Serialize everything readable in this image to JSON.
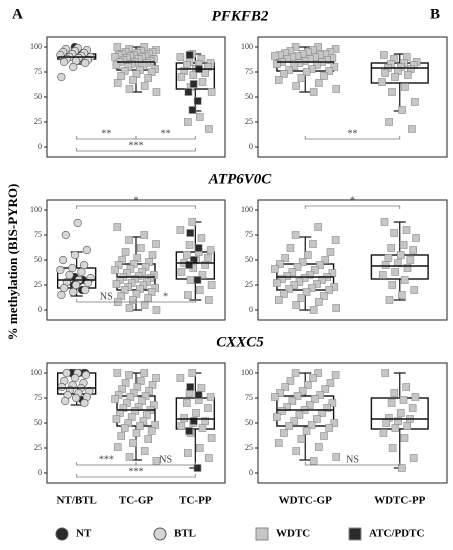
{
  "ylabel": "% methylation (BIS-PYRO)",
  "panel_labels": [
    "A",
    "B"
  ],
  "legend": [
    {
      "name": "NT",
      "color": "#2b2b2b",
      "marker": "circle"
    },
    {
      "name": "BTL",
      "color": "#d6d6d6",
      "marker": "circle"
    },
    {
      "name": "WDTC",
      "color": "#c6c6c6",
      "marker": "square"
    },
    {
      "name": "ATC/PDTC",
      "color": "#2b2b2b",
      "marker": "square"
    }
  ],
  "chart_data": [
    {
      "type": "box",
      "title": "PFKFB2",
      "categories": [
        null,
        null,
        null
      ],
      "ylim": [
        -10,
        110
      ],
      "yticks": [
        0,
        25,
        50,
        75,
        100
      ],
      "groups": [
        {
          "box": {
            "min": 83,
            "q1": 88,
            "median": 90,
            "q3": 93,
            "max": 97
          },
          "points": {
            "NT": [
              100,
              93,
              92,
              90,
              88
            ],
            "BTL": [
              99,
              98,
              97,
              96,
              95,
              94,
              93,
              92,
              91,
              90,
              90,
              89,
              88,
              87,
              86,
              85,
              84,
              80,
              70
            ]
          }
        },
        {
          "box": {
            "min": 55,
            "q1": 77,
            "median": 85,
            "q3": 91,
            "max": 100
          },
          "points": {
            "WDTC": [
              100,
              100,
              98,
              97,
              96,
              95,
              95,
              94,
              93,
              93,
              92,
              92,
              91,
              91,
              90,
              90,
              89,
              88,
              88,
              87,
              86,
              85,
              85,
              84,
              83,
              82,
              81,
              80,
              78,
              77,
              76,
              75,
              73,
              71,
              69,
              67,
              64,
              61,
              58,
              55
            ]
          }
        },
        {
          "box": {
            "min": 36,
            "q1": 58,
            "median": 78,
            "q3": 84,
            "max": 93
          },
          "points": {
            "WDTC": [
              93,
              90,
              88,
              85,
              84,
              83,
              82,
              80,
              78,
              76,
              74,
              72,
              70,
              65,
              60,
              55,
              30,
              25,
              18
            ],
            "ATC/PDTC": [
              92,
              78,
              63,
              55,
              46,
              37
            ]
          }
        }
      ],
      "annotations": [
        {
          "label": "**",
          "between": [
            0,
            1
          ],
          "side": "below"
        },
        {
          "label": "**",
          "between": [
            1,
            2
          ],
          "side": "below"
        },
        {
          "label": "***",
          "between": [
            0,
            2
          ],
          "side": "below"
        }
      ]
    },
    {
      "type": "box",
      "categories": [
        null,
        null
      ],
      "ylim": [
        -10,
        110
      ],
      "yticks": [
        0,
        25,
        50,
        75,
        100
      ],
      "groups": [
        {
          "box": {
            "min": 55,
            "q1": 76,
            "median": 85,
            "q3": 91,
            "max": 100
          },
          "points": {
            "WDTC": [
              100,
              100,
              98,
              97,
              96,
              95,
              95,
              94,
              93,
              93,
              92,
              92,
              91,
              91,
              90,
              90,
              89,
              88,
              88,
              87,
              86,
              85,
              85,
              84,
              83,
              82,
              81,
              80,
              78,
              77,
              76,
              75,
              73,
              71,
              69,
              67,
              64,
              61,
              58,
              55
            ]
          }
        },
        {
          "box": {
            "min": 36,
            "q1": 64,
            "median": 79,
            "q3": 84,
            "max": 93
          },
          "points": {
            "WDTC": [
              92,
              90,
              88,
              85,
              84,
              83,
              82,
              80,
              79,
              78,
              76,
              74,
              72,
              70,
              65,
              60,
              55,
              45,
              37,
              25,
              18
            ]
          }
        }
      ],
      "annotations": [
        {
          "label": "**",
          "between": [
            0,
            1
          ],
          "side": "below"
        }
      ]
    },
    {
      "type": "box",
      "title": "ATP6V0C",
      "categories": [
        null,
        null,
        null
      ],
      "ylim": [
        -10,
        110
      ],
      "yticks": [
        0,
        25,
        50,
        75,
        100
      ],
      "groups": [
        {
          "box": {
            "min": 14,
            "q1": 22,
            "median": 30,
            "q3": 42,
            "max": 58
          },
          "points": {
            "NT": [
              33,
              30,
              28,
              25,
              20
            ],
            "BTL": [
              87,
              75,
              60,
              55,
              50,
              45,
              42,
              40,
              38,
              35,
              32,
              30,
              28,
              27,
              25,
              22,
              20,
              18,
              15
            ]
          }
        },
        {
          "box": {
            "min": 0,
            "q1": 20,
            "median": 33,
            "q3": 46,
            "max": 73
          },
          "points": {
            "WDTC": [
              83,
              75,
              70,
              66,
              62,
              58,
              55,
              52,
              50,
              48,
              46,
              45,
              43,
              41,
              40,
              38,
              37,
              35,
              34,
              33,
              32,
              31,
              30,
              28,
              27,
              26,
              25,
              23,
              22,
              21,
              20,
              18,
              16,
              14,
              12,
              10,
              8,
              5,
              2,
              0
            ]
          }
        },
        {
          "box": {
            "min": 10,
            "q1": 31,
            "median": 47,
            "q3": 58,
            "max": 88
          },
          "points": {
            "WDTC": [
              88,
              80,
              72,
              65,
              60,
              58,
              55,
              52,
              50,
              47,
              45,
              42,
              38,
              35,
              30,
              25,
              20,
              15,
              10
            ],
            "ATC/PDTC": [
              77,
              62,
              50,
              45,
              30
            ]
          }
        }
      ],
      "annotations": [
        {
          "label": "*",
          "between": [
            0,
            2
          ],
          "side": "above"
        },
        {
          "label": "NS",
          "between": [
            0,
            1
          ],
          "side": "below"
        },
        {
          "label": "*",
          "between": [
            1,
            2
          ],
          "side": "below"
        }
      ]
    },
    {
      "type": "box",
      "categories": [
        null,
        null
      ],
      "ylim": [
        -10,
        110
      ],
      "yticks": [
        0,
        25,
        50,
        75,
        100
      ],
      "groups": [
        {
          "box": {
            "min": 0,
            "q1": 20,
            "median": 33,
            "q3": 46,
            "max": 73
          },
          "points": {
            "WDTC": [
              83,
              75,
              70,
              66,
              62,
              58,
              55,
              52,
              50,
              48,
              46,
              45,
              43,
              41,
              40,
              38,
              37,
              35,
              34,
              33,
              32,
              31,
              30,
              28,
              27,
              26,
              25,
              23,
              22,
              21,
              20,
              18,
              16,
              14,
              12,
              10,
              8,
              5,
              2,
              0
            ]
          }
        },
        {
          "box": {
            "min": 10,
            "q1": 31,
            "median": 44,
            "q3": 55,
            "max": 88
          },
          "points": {
            "WDTC": [
              88,
              80,
              77,
              72,
              65,
              62,
              60,
              55,
              52,
              50,
              47,
              45,
              42,
              38,
              35,
              30,
              25,
              20,
              15,
              10
            ]
          }
        }
      ],
      "annotations": [
        {
          "label": "*",
          "between": [
            0,
            1
          ],
          "side": "above"
        }
      ]
    },
    {
      "type": "box",
      "title": "CXXC5",
      "categories": [
        "NT/BTL",
        "TC-GP",
        "TC-PP"
      ],
      "ylim": [
        -10,
        110
      ],
      "yticks": [
        0,
        25,
        50,
        75,
        100
      ],
      "groups": [
        {
          "box": {
            "min": 68,
            "q1": 79,
            "median": 85,
            "q3": 100,
            "max": 100
          },
          "points": {
            "NT": [
              100,
              100,
              100,
              100,
              100,
              100,
              100,
              73
            ],
            "BTL": [
              100,
              100,
              98,
              95,
              92,
              90,
              88,
              86,
              85,
              83,
              82,
              80,
              78,
              76,
              75,
              72,
              70
            ]
          }
        },
        {
          "box": {
            "min": 13,
            "q1": 47,
            "median": 63,
            "q3": 77,
            "max": 100
          },
          "points": {
            "WDTC": [
              100,
              100,
              98,
              95,
              92,
              90,
              88,
              86,
              84,
              82,
              80,
              78,
              77,
              76,
              74,
              72,
              70,
              68,
              66,
              65,
              63,
              62,
              60,
              58,
              56,
              54,
              52,
              50,
              48,
              47,
              45,
              42,
              40,
              37,
              34,
              30,
              26,
              22,
              16,
              12
            ]
          }
        },
        {
          "box": {
            "min": 5,
            "q1": 44,
            "median": 54,
            "q3": 75,
            "max": 100
          },
          "points": {
            "WDTC": [
              100,
              95,
              85,
              80,
              76,
              73,
              70,
              65,
              60,
              55,
              52,
              50,
              47,
              45,
              40,
              35,
              25,
              20,
              15
            ],
            "ATC/PDTC": [
              86,
              78,
              52,
              42,
              5
            ]
          }
        }
      ],
      "annotations": [
        {
          "label": "***",
          "between": [
            0,
            1
          ],
          "side": "below"
        },
        {
          "label": "NS",
          "between": [
            1,
            2
          ],
          "side": "below"
        },
        {
          "label": "***",
          "between": [
            0,
            2
          ],
          "side": "below"
        }
      ]
    },
    {
      "type": "box",
      "categories": [
        "WDTC-GP",
        "WDTC-PP"
      ],
      "ylim": [
        -10,
        110
      ],
      "yticks": [
        0,
        25,
        50,
        75,
        100
      ],
      "groups": [
        {
          "box": {
            "min": 13,
            "q1": 47,
            "median": 63,
            "q3": 77,
            "max": 100
          },
          "points": {
            "WDTC": [
              100,
              100,
              98,
              95,
              92,
              90,
              88,
              86,
              84,
              82,
              80,
              78,
              77,
              76,
              74,
              72,
              70,
              68,
              66,
              65,
              63,
              62,
              60,
              58,
              56,
              54,
              52,
              50,
              48,
              47,
              45,
              42,
              40,
              37,
              34,
              30,
              26,
              22,
              16,
              12
            ]
          }
        },
        {
          "box": {
            "min": 5,
            "q1": 44,
            "median": 54,
            "q3": 75,
            "max": 100
          },
          "points": {
            "WDTC": [
              100,
              86,
              80,
              76,
              73,
              70,
              65,
              60,
              55,
              54,
              52,
              50,
              47,
              45,
              40,
              35,
              25,
              15,
              5
            ]
          }
        }
      ],
      "annotations": [
        {
          "label": "NS",
          "between": [
            0,
            1
          ],
          "side": "below"
        }
      ]
    }
  ]
}
